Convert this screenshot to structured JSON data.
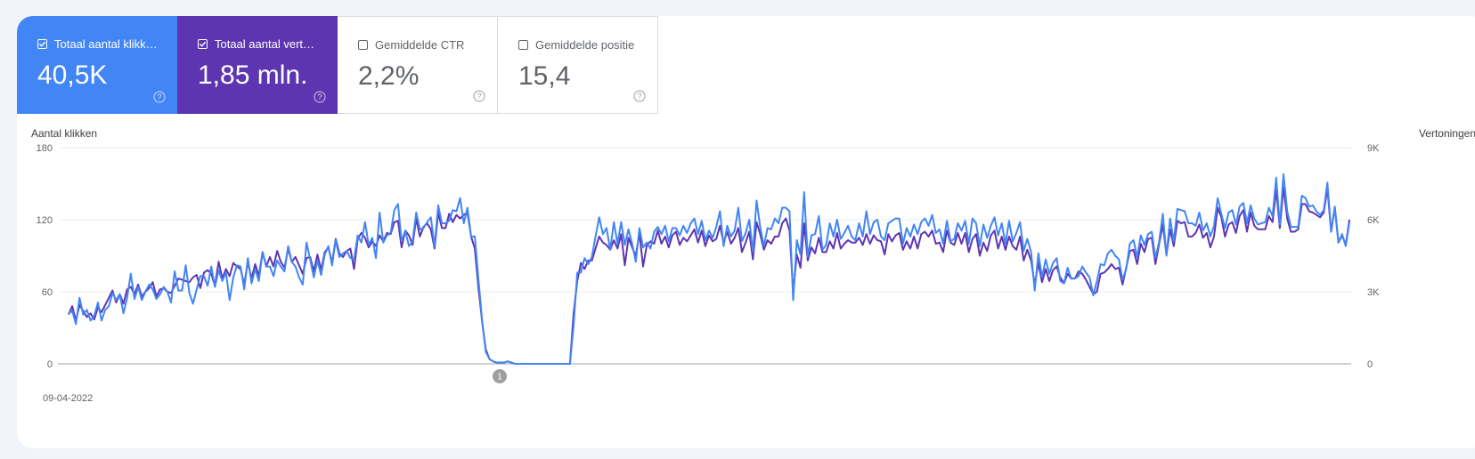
{
  "metrics": [
    {
      "label": "Totaal aantal klikk…",
      "value": "40,5K",
      "checked": true
    },
    {
      "label": "Totaal aantal vert…",
      "value": "1,85 mln.",
      "checked": true
    },
    {
      "label": "Gemiddelde CTR",
      "value": "2,2%",
      "checked": false
    },
    {
      "label": "Gemiddelde positie",
      "value": "15,4",
      "checked": false
    }
  ],
  "colors": {
    "clicks": "#4285f4",
    "impressions": "#5e35b1"
  },
  "chart_data": {
    "type": "line",
    "left_axis": {
      "title": "Aantal klikken",
      "ticks": [
        "0",
        "60",
        "120",
        "180"
      ],
      "ylim": [
        0,
        180
      ]
    },
    "right_axis": {
      "title": "Vertoningen",
      "ticks": [
        "0",
        "3K",
        "6K",
        "9K"
      ],
      "ylim": [
        0,
        9000
      ]
    },
    "x_start_label": "09-04-2022",
    "annotation": "1",
    "grid": true,
    "series": [
      {
        "axis": "left",
        "values": [
          41,
          48,
          36,
          49,
          44,
          39,
          42,
          37,
          47,
          43,
          49,
          55,
          61,
          51,
          58,
          50,
          62,
          64,
          58,
          66,
          56,
          60,
          63,
          68,
          56,
          62,
          63,
          60,
          59,
          65,
          71,
          70,
          69,
          68,
          72,
          74,
          63,
          76,
          78,
          75,
          65,
          85,
          71,
          79,
          73,
          84,
          81,
          79,
          66,
          85,
          71,
          83,
          73,
          93,
          81,
          89,
          81,
          94,
          85,
          80,
          96,
          85,
          89,
          82,
          75,
          88,
          89,
          77,
          91,
          78,
          93,
          97,
          84,
          104,
          92,
          89,
          94,
          96,
          79,
          104,
          109,
          105,
          97,
          102,
          98,
          107,
          102,
          109,
          108,
          118,
          119,
          97,
          111,
          107,
          99,
          121,
          106,
          114,
          117,
          112,
          96,
          126,
          113,
          113,
          125,
          118,
          124,
          121,
          124,
          126,
          106,
          96,
          63,
          35,
          12,
          4,
          2,
          1,
          1,
          1,
          2,
          1,
          0,
          0,
          0,
          0,
          0,
          0,
          0,
          0,
          0,
          0,
          0,
          0,
          0,
          0,
          0,
          0,
          42,
          69,
          84,
          79,
          86,
          86,
          96,
          106,
          101,
          99,
          95,
          103,
          96,
          108,
          82,
          105,
          97,
          90,
          109,
          81,
          99,
          102,
          100,
          111,
          100,
          106,
          97,
          107,
          110,
          99,
          105,
          102,
          107,
          112,
          101,
          111,
          98,
          107,
          102,
          104,
          115,
          101,
          110,
          100,
          105,
          113,
          93,
          101,
          110,
          87,
          118,
          108,
          95,
          103,
          100,
          106,
          106,
          117,
          121,
          111,
          60,
          91,
          80,
          117,
          86,
          97,
          92,
          105,
          93,
          93,
          102,
          96,
          109,
          96,
          100,
          103,
          101,
          101,
          105,
          99,
          108,
          100,
          107,
          103,
          102,
          91,
          108,
          102,
          107,
          109,
          95,
          102,
          96,
          106,
          96,
          108,
          110,
          106,
          111,
          100,
          101,
          93,
          111,
          101,
          99,
          109,
          100,
          109,
          93,
          104,
          108,
          90,
          101,
          94,
          107,
          111,
          96,
          106,
          95,
          106,
          98,
          95,
          106,
          86,
          95,
          86,
          66,
          84,
          68,
          79,
          69,
          78,
          81,
          72,
          67,
          75,
          71,
          71,
          77,
          75,
          70,
          64,
          58,
          60,
          75,
          76,
          79,
          83,
          79,
          80,
          66,
          80,
          94,
          95,
          83,
          100,
          93,
          104,
          105,
          83,
          100,
          116,
          91,
          112,
          98,
          119,
          117,
          118,
          106,
          106,
          109,
          116,
          105,
          109,
          97,
          106,
          130,
          122,
          106,
          116,
          118,
          109,
          123,
          128,
          110,
          126,
          115,
          112,
          112,
          112,
          123,
          118,
          145,
          113,
          147,
          121,
          110,
          110,
          112,
          133,
          133,
          127,
          126,
          124,
          122,
          126,
          146,
          110,
          130,
          101,
          107,
          99,
          120
        ]
      },
      {
        "axis": "left",
        "values": [
          42,
          44,
          33,
          55,
          41,
          45,
          36,
          40,
          51,
          36,
          45,
          48,
          59,
          53,
          58,
          42,
          55,
          75,
          54,
          64,
          53,
          60,
          66,
          62,
          54,
          58,
          64,
          60,
          51,
          77,
          61,
          61,
          82,
          59,
          50,
          62,
          73,
          73,
          65,
          81,
          64,
          78,
          69,
          76,
          53,
          72,
          82,
          81,
          62,
          88,
          67,
          79,
          69,
          93,
          81,
          81,
          73,
          86,
          81,
          77,
          98,
          85,
          81,
          72,
          66,
          101,
          87,
          72,
          86,
          74,
          91,
          98,
          82,
          103,
          89,
          92,
          94,
          88,
          87,
          107,
          101,
          118,
          99,
          105,
          88,
          126,
          101,
          107,
          109,
          128,
          133,
          102,
          111,
          98,
          102,
          126,
          112,
          113,
          118,
          122,
          98,
          132,
          117,
          117,
          119,
          128,
          127,
          138,
          117,
          130,
          106,
          106,
          70,
          36,
          10,
          4,
          2,
          1,
          1,
          1,
          2,
          1,
          0,
          0,
          0,
          0,
          0,
          0,
          0,
          0,
          0,
          0,
          0,
          0,
          0,
          0,
          0,
          0,
          32,
          76,
          76,
          88,
          83,
          89,
          106,
          122,
          108,
          113,
          95,
          118,
          100,
          118,
          99,
          112,
          100,
          85,
          113,
          97,
          101,
          96,
          110,
          114,
          108,
          115,
          102,
          113,
          113,
          107,
          115,
          109,
          117,
          121,
          108,
          119,
          103,
          111,
          105,
          114,
          127,
          98,
          115,
          106,
          111,
          130,
          102,
          109,
          120,
          93,
          136,
          114,
          98,
          113,
          112,
          121,
          117,
          130,
          130,
          127,
          53,
          103,
          91,
          143,
          89,
          107,
          108,
          123,
          95,
          99,
          117,
          106,
          120,
          104,
          109,
          115,
          106,
          103,
          117,
          106,
          127,
          108,
          118,
          120,
          106,
          103,
          117,
          119,
          121,
          121,
          100,
          113,
          106,
          116,
          108,
          118,
          121,
          115,
          124,
          109,
          112,
          100,
          119,
          102,
          104,
          117,
          111,
          119,
          100,
          121,
          117,
          98,
          116,
          105,
          115,
          122,
          107,
          117,
          100,
          119,
          102,
          109,
          118,
          94,
          104,
          93,
          61,
          92,
          72,
          87,
          75,
          84,
          88,
          69,
          67,
          80,
          71,
          71,
          73,
          81,
          76,
          72,
          57,
          69,
          83,
          82,
          92,
          95,
          90,
          87,
          70,
          79,
          100,
          103,
          89,
          107,
          99,
          108,
          110,
          88,
          102,
          125,
          90,
          121,
          102,
          129,
          128,
          127,
          117,
          117,
          115,
          126,
          111,
          117,
          106,
          115,
          138,
          125,
          113,
          126,
          128,
          116,
          131,
          134,
          117,
          132,
          121,
          116,
          117,
          118,
          130,
          123,
          155,
          116,
          158,
          127,
          114,
          114,
          114,
          140,
          138,
          131,
          132,
          127,
          124,
          128,
          151,
          110,
          131,
          101,
          108,
          98,
          118
        ]
      }
    ]
  }
}
